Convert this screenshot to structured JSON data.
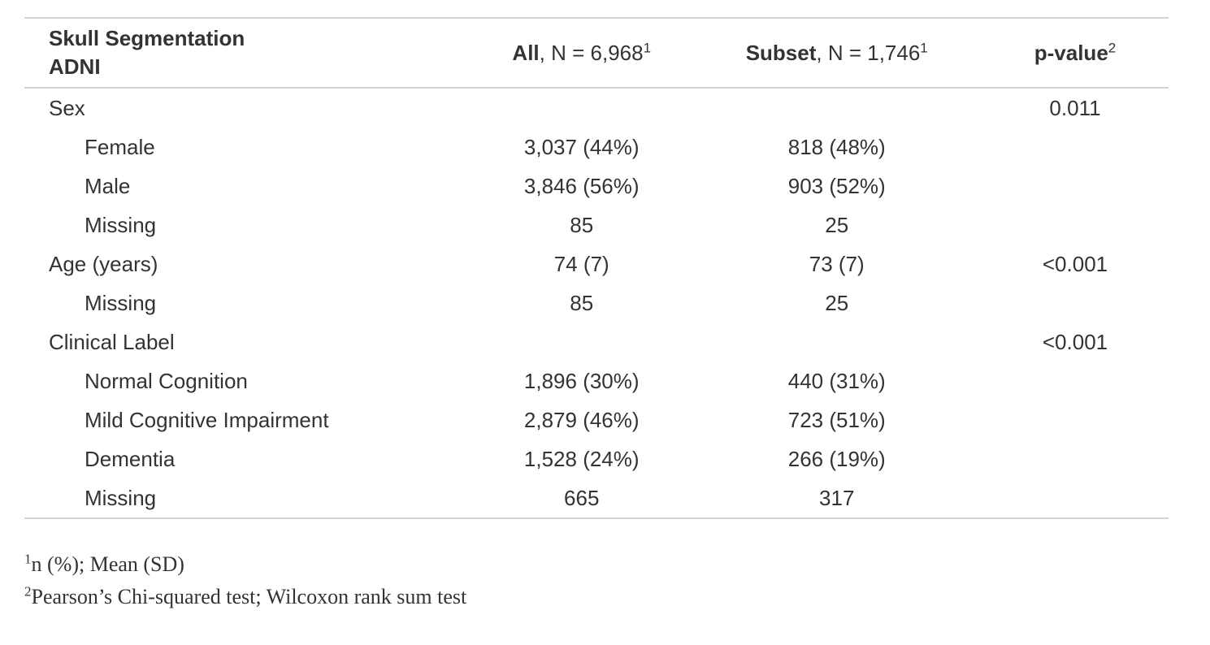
{
  "header": {
    "label_line1": "Skull Segmentation",
    "label_line2": "ADNI",
    "all_bold": "All",
    "all_rest": ", N = 6,968",
    "all_mark": "1",
    "subset_bold": "Subset",
    "subset_rest": ", N = 1,746",
    "subset_mark": "1",
    "pvalue_bold": "p-value",
    "pvalue_mark": "2"
  },
  "rows": [
    {
      "label": "Sex",
      "all": "",
      "subset": "",
      "p": "0.011"
    },
    {
      "label": "Female",
      "all": "3,037 (44%)",
      "subset": "818 (48%)",
      "p": ""
    },
    {
      "label": "Male",
      "all": "3,846 (56%)",
      "subset": "903 (52%)",
      "p": ""
    },
    {
      "label": "Missing",
      "all": "85",
      "subset": "25",
      "p": ""
    },
    {
      "label": "Age (years)",
      "all": "74 (7)",
      "subset": "73 (7)",
      "p": "<0.001"
    },
    {
      "label": "Missing",
      "all": "85",
      "subset": "25",
      "p": ""
    },
    {
      "label": "Clinical Label",
      "all": "",
      "subset": "",
      "p": "<0.001"
    },
    {
      "label": "Normal Cognition",
      "all": "1,896 (30%)",
      "subset": "440 (31%)",
      "p": ""
    },
    {
      "label": "Mild Cognitive Impairment",
      "all": "2,879 (46%)",
      "subset": "723 (51%)",
      "p": ""
    },
    {
      "label": "Dementia",
      "all": "1,528 (24%)",
      "subset": "266 (19%)",
      "p": ""
    },
    {
      "label": "Missing",
      "all": "665",
      "subset": "317",
      "p": ""
    }
  ],
  "footnotes": [
    {
      "mark": "1",
      "text": "n (%); Mean (SD)"
    },
    {
      "mark": "2",
      "text": "Pearson’s Chi-squared test; Wilcoxon rank sum test"
    }
  ]
}
